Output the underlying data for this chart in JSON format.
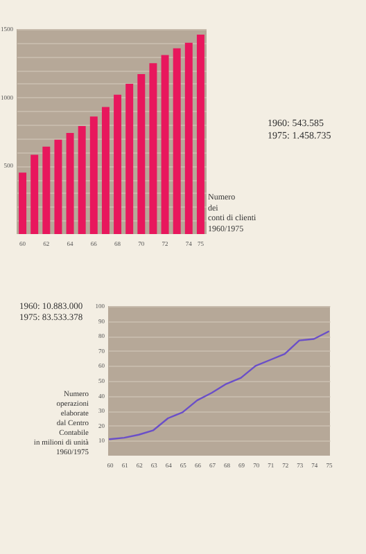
{
  "chart_data": [
    {
      "type": "bar",
      "categories": [
        "60",
        null,
        "62",
        null,
        "64",
        null,
        "66",
        null,
        "68",
        null,
        "70",
        null,
        "72",
        null,
        "74",
        "75"
      ],
      "values": [
        450,
        580,
        640,
        690,
        740,
        790,
        860,
        930,
        1020,
        1100,
        1170,
        1250,
        1310,
        1360,
        1400,
        1460
      ],
      "color": "#e8175d",
      "ylim": [
        0,
        1500
      ],
      "yticks": [
        {
          "value": 100,
          "label": null
        },
        {
          "value": 200,
          "label": null
        },
        {
          "value": 300,
          "label": null
        },
        {
          "value": 400,
          "label": null
        },
        500,
        {
          "value": 600,
          "label": null
        },
        {
          "value": 700,
          "label": null
        },
        {
          "value": 800,
          "label": null
        },
        {
          "value": 900,
          "label": null
        },
        1000,
        {
          "value": 1100,
          "label": null
        },
        {
          "value": 1200,
          "label": null
        },
        {
          "value": 1300,
          "label": null
        },
        {
          "value": 1400,
          "label": null
        },
        1500
      ],
      "grid": "y",
      "annotations": [
        "Numero\ndei\nconti di clienti\n1960/1975",
        "1960: 543.585\n1975: 1.458.735"
      ]
    },
    {
      "type": "line",
      "categories": [
        "60",
        "61",
        "62",
        "63",
        "64",
        "65",
        "66",
        "67",
        "68",
        "69",
        "70",
        "71",
        "72",
        "73",
        "74",
        "75"
      ],
      "values": [
        11,
        12,
        14,
        17,
        25,
        29,
        37,
        42,
        48,
        52,
        60,
        64,
        68,
        77,
        78,
        83
      ],
      "color": "#6a4fc8",
      "ylim": [
        0,
        100
      ],
      "yticks": [
        10,
        20,
        30,
        40,
        50,
        60,
        70,
        80,
        90,
        100
      ],
      "grid": "y",
      "annotations": [
        "1960: 10.883.000\n1975: 83.533.378",
        "Numero\noperazioni\nelaborate\ndal Centro\nContabile\nin milioni di unità\n1960/1975"
      ]
    }
  ]
}
